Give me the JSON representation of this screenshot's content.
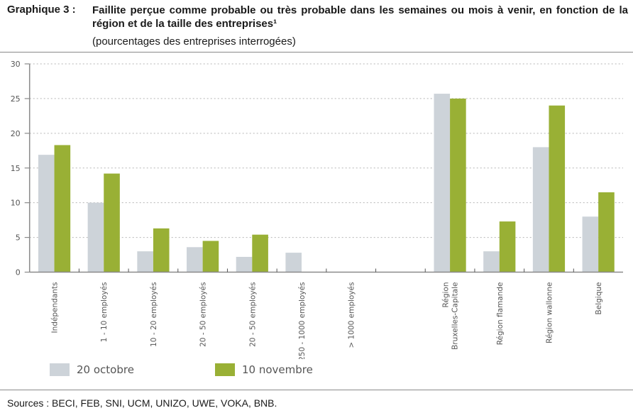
{
  "header": {
    "label": "Graphique 3 :",
    "title": "Faillite perçue comme probable ou très probable dans les semaines ou mois à venir, en fonction de la région et de la taille des entreprises¹",
    "subtitle": "(pourcentages des entreprises interrogées)"
  },
  "footer": {
    "sources": "Sources : BECI, FEB, SNI, UCM, UNIZO, UWE, VOKA, BNB."
  },
  "colors": {
    "series_1": "#cdd3d9",
    "series_2": "#99b035",
    "axis": "#8a8a8a",
    "grid": "#b5b5b5"
  },
  "chart_data": {
    "type": "bar",
    "title": "Faillite perçue comme probable ou très probable dans les semaines ou mois à venir, en fonction de la région et de la taille des entreprises",
    "xlabel": "",
    "ylabel": "",
    "ylim": [
      0,
      30
    ],
    "yticks": [
      "0",
      "5",
      "10",
      "15",
      "20",
      "25",
      "30"
    ],
    "grid": true,
    "legend_position": "bottom-left",
    "categories": [
      [
        "Indépendants"
      ],
      [
        "1 - 10 employés"
      ],
      [
        "10 - 20 employés"
      ],
      [
        "20 - 50 employés"
      ],
      [
        "20 - 50 employés"
      ],
      [
        "250 - 1000 employés"
      ],
      [
        "> 1000 employés"
      ],
      [
        ""
      ],
      [
        "Région",
        "Bruxelles-Capitale"
      ],
      [
        "Région flamande"
      ],
      [
        "Région wallonne"
      ],
      [
        "Belgique"
      ]
    ],
    "series": [
      {
        "name": "20 octobre",
        "values": [
          16.9,
          10.0,
          3.0,
          3.6,
          2.2,
          2.8,
          0,
          null,
          25.7,
          3.0,
          18.0,
          8.0
        ]
      },
      {
        "name": "10 novembre",
        "values": [
          18.3,
          14.2,
          6.3,
          4.5,
          5.4,
          0,
          0,
          null,
          25.0,
          7.3,
          24.0,
          11.5
        ]
      }
    ]
  }
}
